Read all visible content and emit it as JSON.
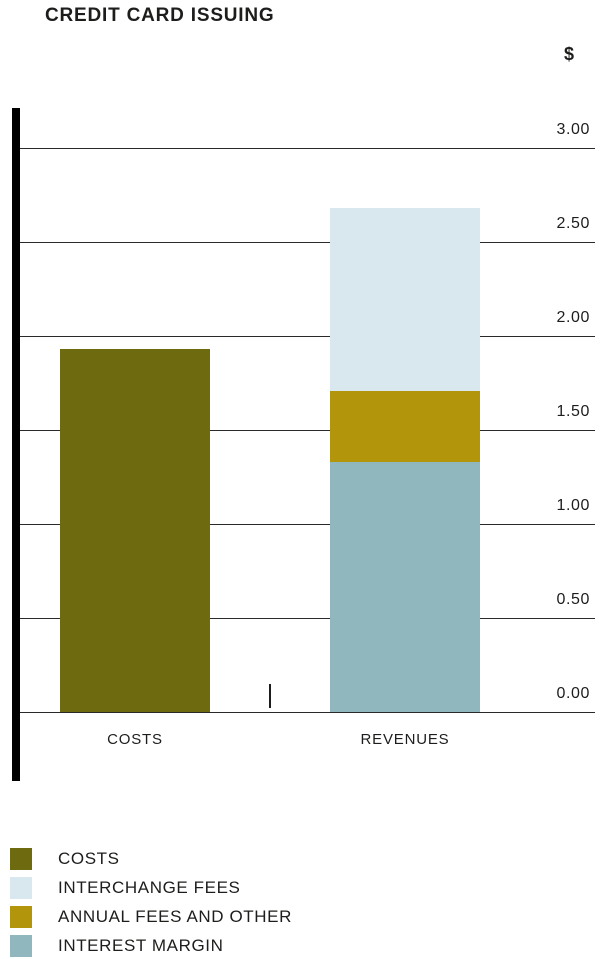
{
  "title": "CREDIT CARD ISSUING",
  "colors": {
    "costs": "#6d6a10",
    "interchange_fees": "#d9e7ee",
    "annual_fees": "#b2950a",
    "interest_margin": "#8fb7bd",
    "text": "#1d1d1b",
    "gridline": "#2a2a28",
    "axis": "#000000"
  },
  "chart_data": {
    "type": "bar",
    "stacked": true,
    "title": "CREDIT CARD ISSUING",
    "ylabel": "$",
    "xlabel": "",
    "ylim": [
      0,
      3.2
    ],
    "grid": true,
    "legend_position": "bottom-left",
    "yticks": [
      "3.00",
      "2.50",
      "2.00",
      "1.50",
      "1.00",
      "0.50",
      "0.00"
    ],
    "categories": [
      "COSTS",
      "REVENUES"
    ],
    "series": [
      {
        "name": "COSTS",
        "color_key": "costs",
        "values": [
          1.93,
          0
        ]
      },
      {
        "name": "INTEREST MARGIN",
        "color_key": "interest_margin",
        "values": [
          0,
          1.33
        ]
      },
      {
        "name": "ANNUAL FEES AND OTHER",
        "color_key": "annual_fees",
        "values": [
          0,
          0.38
        ]
      },
      {
        "name": "INTERCHANGE FEES",
        "color_key": "interchange_fees",
        "values": [
          0,
          0.97
        ]
      }
    ]
  },
  "legend": [
    {
      "label": "COSTS",
      "color_key": "costs"
    },
    {
      "label": "INTERCHANGE FEES",
      "color_key": "interchange_fees"
    },
    {
      "label": "ANNUAL FEES AND OTHER",
      "color_key": "annual_fees"
    },
    {
      "label": "INTEREST MARGIN",
      "color_key": "interest_margin"
    }
  ]
}
